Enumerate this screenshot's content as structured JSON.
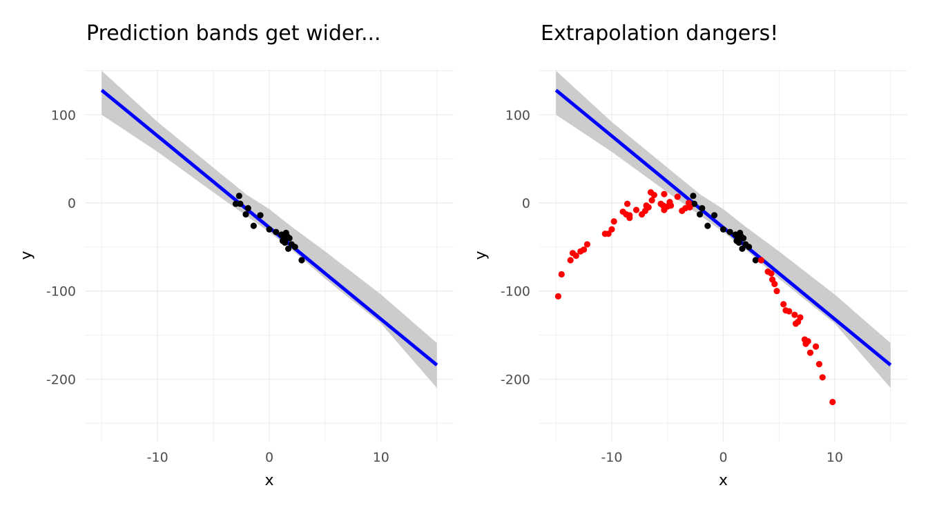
{
  "chart_data": [
    {
      "type": "scatter",
      "title": "Prediction bands get wider...",
      "xlabel": "x",
      "ylabel": "y",
      "xlim": [
        -16.5,
        16.5
      ],
      "ylim": [
        -271,
        152
      ],
      "x_ticks": [
        -10,
        0,
        10
      ],
      "y_ticks": [
        -200,
        -100,
        0,
        100
      ],
      "grid": true,
      "fit_line": {
        "color": "#0000ff",
        "x": [
          -15,
          15
        ],
        "y": [
          128,
          -184
        ]
      },
      "prediction_band": {
        "color": "#cccccc",
        "x": [
          -15,
          -10,
          -5,
          -2,
          0,
          2,
          5,
          10,
          15
        ],
        "lower": [
          100,
          58,
          12,
          -15,
          -33,
          -53,
          -86,
          -137,
          -210
        ],
        "upper": [
          150,
          92,
          40,
          9,
          -7,
          -27,
          -55,
          -104,
          -159
        ]
      },
      "series": [
        {
          "color": "#000000",
          "points": [
            [
              -3.0,
              -1
            ],
            [
              -2.7,
              8
            ],
            [
              -2.6,
              -1
            ],
            [
              -2.1,
              -13
            ],
            [
              -1.9,
              -6
            ],
            [
              -1.4,
              -26
            ],
            [
              -0.8,
              -14
            ],
            [
              0.0,
              -30
            ],
            [
              0.6,
              -33
            ],
            [
              1.1,
              -36
            ],
            [
              1.2,
              -43
            ],
            [
              1.3,
              -39
            ],
            [
              1.4,
              -45
            ],
            [
              1.5,
              -34
            ],
            [
              1.6,
              -38
            ],
            [
              1.7,
              -52
            ],
            [
              1.8,
              -40
            ],
            [
              2.0,
              -47
            ],
            [
              2.3,
              -50
            ],
            [
              2.9,
              -65
            ]
          ]
        }
      ]
    },
    {
      "type": "scatter",
      "title": "Extrapolation dangers!",
      "xlabel": "x",
      "ylabel": "y",
      "xlim": [
        -16.5,
        16.5
      ],
      "ylim": [
        -271,
        152
      ],
      "x_ticks": [
        -10,
        0,
        10
      ],
      "y_ticks": [
        -200,
        -100,
        0,
        100
      ],
      "grid": true,
      "fit_line": {
        "color": "#0000ff",
        "x": [
          -15,
          15
        ],
        "y": [
          128,
          -184
        ]
      },
      "prediction_band": {
        "color": "#cccccc",
        "x": [
          -15,
          -10,
          -5,
          -2,
          0,
          2,
          5,
          10,
          15
        ],
        "lower": [
          100,
          58,
          12,
          -15,
          -33,
          -53,
          -86,
          -137,
          -210
        ],
        "upper": [
          150,
          92,
          40,
          9,
          -7,
          -27,
          -55,
          -104,
          -159
        ]
      },
      "series": [
        {
          "color": "#000000",
          "points": [
            [
              -3.0,
              -1
            ],
            [
              -2.7,
              8
            ],
            [
              -2.6,
              -1
            ],
            [
              -2.1,
              -13
            ],
            [
              -1.9,
              -6
            ],
            [
              -1.4,
              -26
            ],
            [
              -0.8,
              -14
            ],
            [
              0.0,
              -30
            ],
            [
              0.6,
              -33
            ],
            [
              1.1,
              -36
            ],
            [
              1.2,
              -43
            ],
            [
              1.3,
              -39
            ],
            [
              1.4,
              -45
            ],
            [
              1.5,
              -34
            ],
            [
              1.6,
              -38
            ],
            [
              1.7,
              -52
            ],
            [
              1.8,
              -40
            ],
            [
              2.0,
              -47
            ],
            [
              2.3,
              -50
            ],
            [
              2.9,
              -65
            ]
          ]
        },
        {
          "color": "#ff0000",
          "points": [
            [
              -14.8,
              -106
            ],
            [
              -14.5,
              -81
            ],
            [
              -13.7,
              -65
            ],
            [
              -13.5,
              -57
            ],
            [
              -13.2,
              -60
            ],
            [
              -12.8,
              -55
            ],
            [
              -12.5,
              -53
            ],
            [
              -12.2,
              -47
            ],
            [
              -10.6,
              -35
            ],
            [
              -10.3,
              -35
            ],
            [
              -10.0,
              -30
            ],
            [
              -9.8,
              -21
            ],
            [
              -9.0,
              -10
            ],
            [
              -8.7,
              -13
            ],
            [
              -8.6,
              -1
            ],
            [
              -8.4,
              -14
            ],
            [
              -8.4,
              -17
            ],
            [
              -7.8,
              -8
            ],
            [
              -7.3,
              -13
            ],
            [
              -7.0,
              -9
            ],
            [
              -6.9,
              -3
            ],
            [
              -6.7,
              -5
            ],
            [
              -6.5,
              12
            ],
            [
              -6.4,
              3
            ],
            [
              -6.2,
              9
            ],
            [
              -5.6,
              -1
            ],
            [
              -5.4,
              -3
            ],
            [
              -5.3,
              10
            ],
            [
              -5.3,
              -8
            ],
            [
              -5.0,
              -4
            ],
            [
              -4.8,
              1
            ],
            [
              -4.7,
              -3
            ],
            [
              -4.1,
              7
            ],
            [
              -3.7,
              -9
            ],
            [
              -3.4,
              -6
            ],
            [
              -3.1,
              0
            ],
            [
              -3.0,
              -5
            ],
            [
              3.4,
              -65
            ],
            [
              4.0,
              -78
            ],
            [
              4.3,
              -80
            ],
            [
              4.4,
              -87
            ],
            [
              4.6,
              -92
            ],
            [
              4.8,
              -100
            ],
            [
              5.4,
              -115
            ],
            [
              5.6,
              -122
            ],
            [
              5.9,
              -123
            ],
            [
              6.4,
              -127
            ],
            [
              6.5,
              -137
            ],
            [
              6.7,
              -135
            ],
            [
              6.9,
              -130
            ],
            [
              7.3,
              -155
            ],
            [
              7.4,
              -160
            ],
            [
              7.6,
              -157
            ],
            [
              7.8,
              -170
            ],
            [
              8.3,
              -163
            ],
            [
              8.6,
              -183
            ],
            [
              8.9,
              -198
            ],
            [
              9.8,
              -226
            ]
          ]
        }
      ]
    }
  ]
}
